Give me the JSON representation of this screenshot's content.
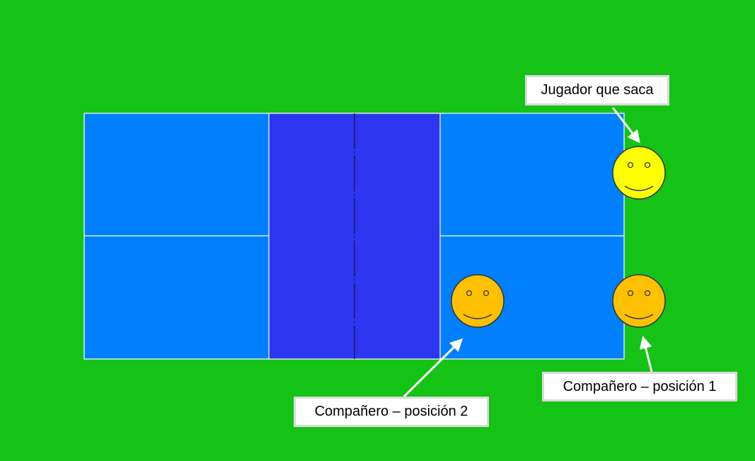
{
  "diagram": {
    "labels": {
      "server": "Jugador que saca",
      "partner_position_1": "Compañero – posición 1",
      "partner_position_2": "Compañero – posición 2"
    },
    "colors": {
      "background": "#15c216",
      "court": "#0080ff",
      "kitchen": "#2e35ef",
      "court_lines": "#ffffff",
      "net": "#1a1a6e",
      "server_face": "#ffff00",
      "partner_face": "#ffc000",
      "face_outline": "#333333",
      "arrows": "#ffffff"
    },
    "players": [
      {
        "role": "server",
        "icon": "smiley-face-icon"
      },
      {
        "role": "partner-position-1",
        "icon": "smiley-face-icon"
      },
      {
        "role": "partner-position-2",
        "icon": "smiley-face-icon"
      }
    ]
  }
}
